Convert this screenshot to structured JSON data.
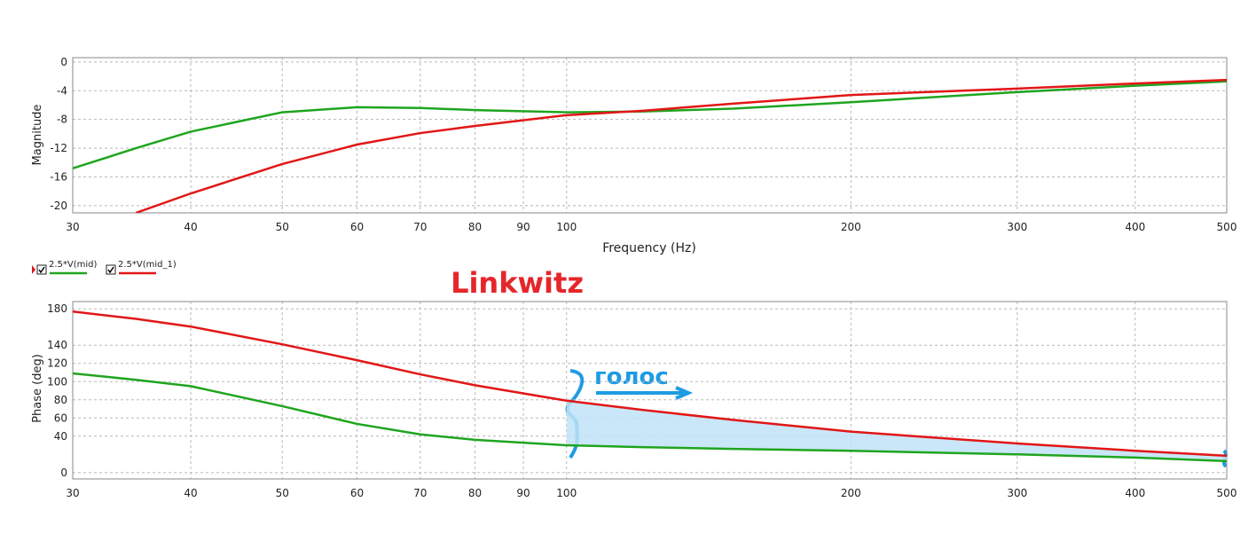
{
  "chart_data": [
    {
      "type": "line",
      "xscale": "log",
      "xlabel": "Frequency (Hz)",
      "ylabel": "Magnitude",
      "x": [
        30,
        35,
        40,
        50,
        60,
        70,
        80,
        100,
        120,
        150,
        200,
        300,
        400,
        500
      ],
      "xlim": [
        30,
        500
      ],
      "xticks": [
        30,
        40,
        50,
        60,
        70,
        80,
        90,
        100,
        200,
        300,
        400,
        500
      ],
      "ylim": [
        -21,
        0.6
      ],
      "yticks": [
        0,
        -4,
        -8,
        -12,
        -16,
        -20
      ],
      "grid": true,
      "series": [
        {
          "name": "2.5*V(mid)",
          "color": "#1fa51f",
          "values": [
            -14.8,
            -12,
            -9.7,
            -7,
            -6.3,
            -6.4,
            -6.7,
            -7,
            -6.9,
            -6.5,
            -5.6,
            -4.2,
            -3.3,
            -2.7
          ]
        },
        {
          "name": "2.5*V(mid_1)",
          "color": "#e21616",
          "values": [
            null,
            -21,
            -18.3,
            -14.2,
            -11.5,
            -9.9,
            -8.9,
            -7.4,
            -6.8,
            -5.8,
            -4.6,
            -3.7,
            -3,
            -2.5
          ]
        }
      ]
    },
    {
      "type": "line",
      "xscale": "log",
      "ylabel": "Phase (deg)",
      "annotations": [
        "Linkwitz",
        "голос"
      ],
      "x": [
        30,
        35,
        40,
        50,
        60,
        70,
        80,
        100,
        120,
        150,
        200,
        300,
        400,
        500
      ],
      "xlim": [
        30,
        500
      ],
      "xticks": [
        30,
        40,
        50,
        60,
        70,
        80,
        90,
        100,
        200,
        300,
        400,
        500
      ],
      "ylim": [
        -7,
        188
      ],
      "yticks": [
        0,
        40,
        60,
        80,
        100,
        120,
        140,
        180
      ],
      "grid": true,
      "series": [
        {
          "color": "#1fa51f",
          "values": [
            109,
            102,
            95,
            73,
            53.5,
            42,
            36,
            30,
            28,
            26,
            24,
            20,
            16.5,
            12.6
          ]
        },
        {
          "color": "#e21616",
          "values": [
            177,
            169,
            160.5,
            141,
            123.5,
            108,
            96,
            79,
            69,
            58,
            45,
            32,
            24,
            18.5
          ]
        }
      ]
    }
  ]
}
